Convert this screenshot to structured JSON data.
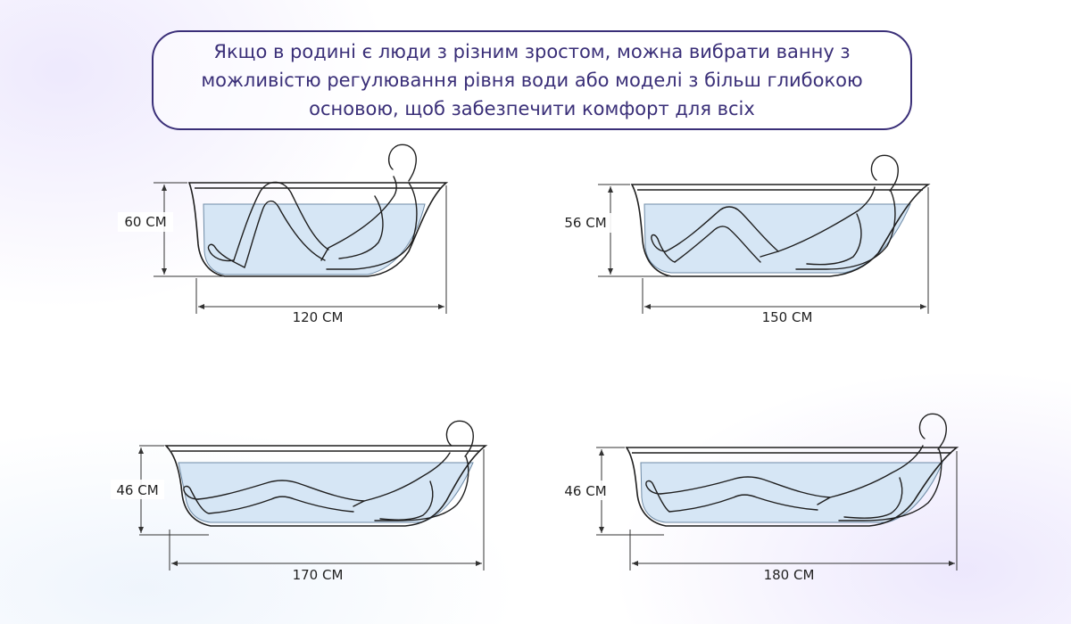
{
  "callout": {
    "text": "Якщо в родині є люди з різним зростом, можна вибрати ванну з можливістю регулювання рівня води або моделі з більш глибокою основою, щоб забезпечити комфорт для всіх"
  },
  "tubs": [
    {
      "height_label": "60 СМ",
      "length_label": "120 СМ"
    },
    {
      "height_label": "56 СМ",
      "length_label": "150 СМ"
    },
    {
      "height_label": "46 СМ",
      "length_label": "170 СМ"
    },
    {
      "height_label": "46 СМ",
      "length_label": "180 СМ"
    }
  ],
  "colors": {
    "accent": "#3a2f78",
    "water": "#d6e6f5",
    "outline": "#1f1f1f"
  }
}
